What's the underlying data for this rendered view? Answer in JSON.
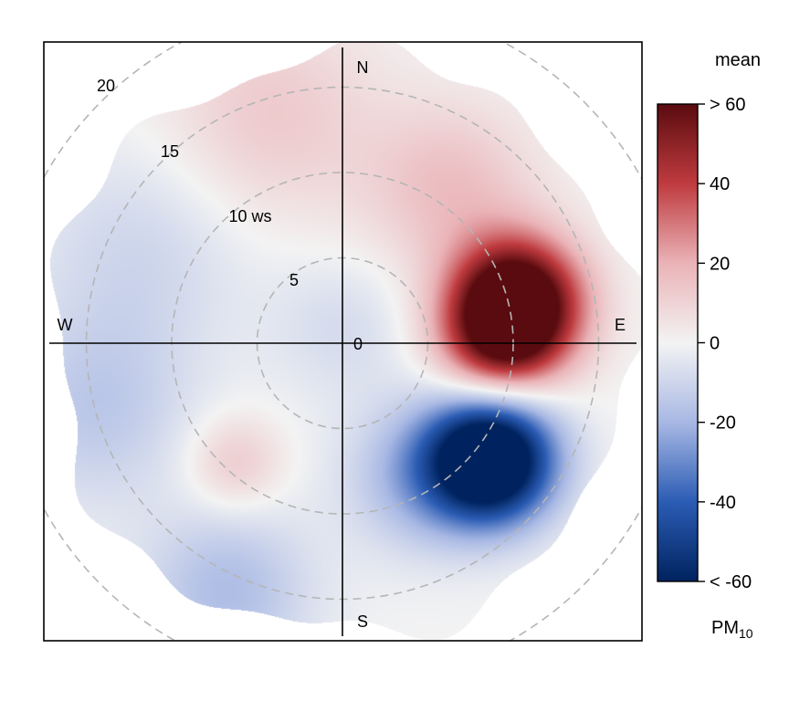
{
  "chart_data": {
    "type": "polar-heatmap",
    "variable": "mean",
    "pollutant": {
      "base": "PM",
      "subscript": "10"
    },
    "directions": {
      "north": "N",
      "east": "E",
      "south": "S",
      "west": "W"
    },
    "rings": [
      {
        "value": 5,
        "label": "5"
      },
      {
        "value": 10,
        "label": "10 ws"
      },
      {
        "value": 15,
        "label": "15"
      },
      {
        "value": 20,
        "label": "20"
      }
    ],
    "center_label": "0",
    "radial_max": 17,
    "colorbar": {
      "title": "mean",
      "range": [
        -60,
        60
      ],
      "ticks": [
        {
          "value": 60,
          "label": "> 60"
        },
        {
          "value": 40,
          "label": "40"
        },
        {
          "value": 20,
          "label": "20"
        },
        {
          "value": 0,
          "label": "0"
        },
        {
          "value": -20,
          "label": "-20"
        },
        {
          "value": -40,
          "label": "-40"
        },
        {
          "value": -60,
          "label": "< -60"
        }
      ],
      "colors": [
        "#00235f",
        "#2b5cb4",
        "#a8b8e4",
        "#f3f3f3",
        "#eab3b7",
        "#bf3b3f",
        "#5a0b0f"
      ]
    },
    "blobs": [
      {
        "note": "north-north-west light red",
        "dir": -18,
        "ws": 14,
        "spread": 4.5,
        "value": 13
      },
      {
        "note": "north-east warm",
        "dir": 35,
        "ws": 11,
        "spread": 3.5,
        "value": 16
      },
      {
        "note": "east hot spot",
        "dir": 77,
        "ws": 10.5,
        "spread": 2.6,
        "value": 78
      },
      {
        "note": "east near hot",
        "dir": 90,
        "ws": 9,
        "spread": 2.5,
        "value": 35
      },
      {
        "note": "east-south-east cold spot",
        "dir": 128,
        "ws": 11,
        "spread": 2.6,
        "value": -85
      },
      {
        "note": "south-east blue",
        "dir": 150,
        "ws": 9,
        "spread": 3,
        "value": -20
      },
      {
        "note": "south-south-west light blue",
        "dir": 205,
        "ws": 16,
        "spread": 3.5,
        "value": -18
      },
      {
        "note": "south-west pink",
        "dir": 222,
        "ws": 9.5,
        "spread": 2,
        "value": 14
      },
      {
        "note": "west blue",
        "dir": 255,
        "ws": 15,
        "spread": 4,
        "value": -14
      },
      {
        "note": "west-north-west blue",
        "dir": 295,
        "ws": 13,
        "spread": 4.5,
        "value": -10
      },
      {
        "note": "centre slight blue",
        "dir": 0,
        "ws": 1,
        "spread": 3,
        "value": -8
      }
    ]
  }
}
